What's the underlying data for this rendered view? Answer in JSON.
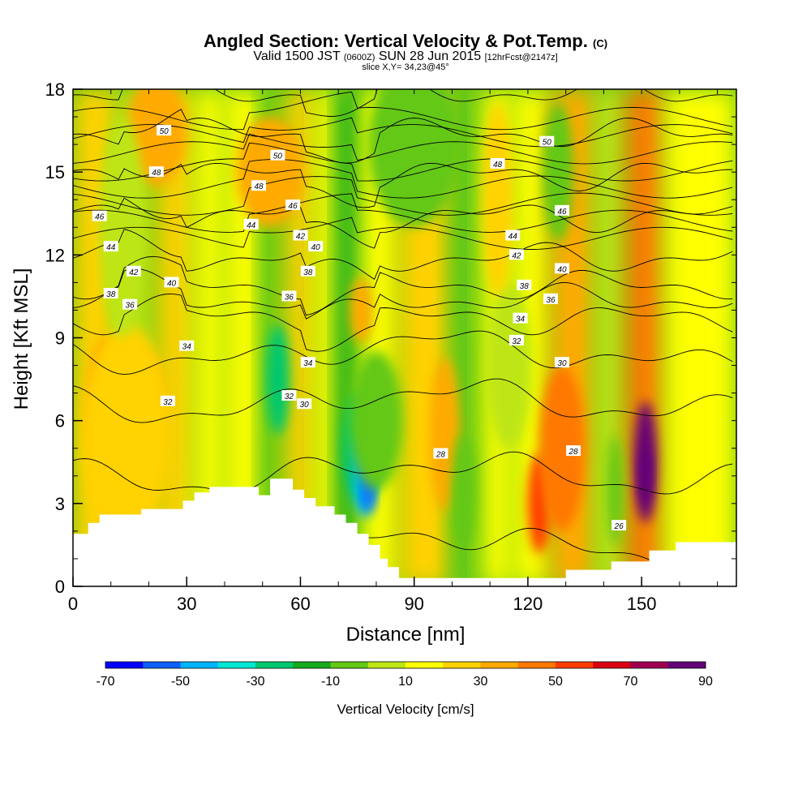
{
  "title": {
    "main": "Angled Section: Vertical Velocity & Pot.Temp.",
    "main_unit": "(C)",
    "sub_a": "Valid 1500 JST",
    "sub_b": "(0600Z)",
    "sub_c": "SUN 28 Jun 2015",
    "sub_d": "[12hrFcst@2147z]",
    "slice": "slice X,Y= 34,23@45°"
  },
  "chart_data": {
    "type": "heatmap",
    "xlabel": "Distance [nm]",
    "ylabel": "Height [Kft MSL]",
    "xlim": [
      0,
      175
    ],
    "ylim": [
      0,
      18
    ],
    "x_ticks": [
      "0",
      "30",
      "60",
      "90",
      "120",
      "150"
    ],
    "x_tick_values": [
      0,
      30,
      60,
      90,
      120,
      150
    ],
    "y_ticks": [
      "0",
      "3",
      "6",
      "9",
      "12",
      "15",
      "18"
    ],
    "y_tick_values": [
      0,
      3,
      6,
      9,
      12,
      15,
      18
    ],
    "colorbar": {
      "label": "Vertical Velocity [cm/s]",
      "tick_labels": [
        "-70",
        "-50",
        "-30",
        "-10",
        "10",
        "30",
        "50",
        "70",
        "90"
      ],
      "tick_values": [
        -70,
        -50,
        -30,
        -10,
        10,
        30,
        50,
        70,
        90
      ],
      "colors": [
        "#0000ff",
        "#1060ff",
        "#00b4ff",
        "#00e6d2",
        "#00c86e",
        "#14aa1e",
        "#64c814",
        "#bee614",
        "#ffff00",
        "#ffd200",
        "#ffaa00",
        "#ff7800",
        "#ff3c00",
        "#dc0014",
        "#a00050",
        "#640078"
      ]
    },
    "terrain": [
      [
        0,
        1.9
      ],
      [
        4,
        1.9
      ],
      [
        4,
        2.3
      ],
      [
        7,
        2.3
      ],
      [
        7,
        2.6
      ],
      [
        18,
        2.6
      ],
      [
        18,
        2.8
      ],
      [
        29,
        2.8
      ],
      [
        29,
        3.1
      ],
      [
        32,
        3.1
      ],
      [
        32,
        3.4
      ],
      [
        36,
        3.4
      ],
      [
        36,
        3.6
      ],
      [
        49,
        3.6
      ],
      [
        49,
        3.3
      ],
      [
        52,
        3.3
      ],
      [
        52,
        3.9
      ],
      [
        58,
        3.9
      ],
      [
        58,
        3.5
      ],
      [
        61,
        3.5
      ],
      [
        61,
        3.2
      ],
      [
        64,
        3.2
      ],
      [
        64,
        2.9
      ],
      [
        69,
        2.9
      ],
      [
        69,
        2.6
      ],
      [
        72,
        2.6
      ],
      [
        72,
        2.3
      ],
      [
        75,
        2.3
      ],
      [
        75,
        1.9
      ],
      [
        78,
        1.9
      ],
      [
        78,
        1.5
      ],
      [
        81,
        1.5
      ],
      [
        81,
        1.0
      ],
      [
        83,
        1.0
      ],
      [
        83,
        0.7
      ],
      [
        86,
        0.7
      ],
      [
        86,
        0.3
      ],
      [
        130,
        0.3
      ],
      [
        130,
        0.6
      ],
      [
        142,
        0.6
      ],
      [
        142,
        0.9
      ],
      [
        152,
        0.9
      ],
      [
        152,
        1.3
      ],
      [
        159,
        1.3
      ],
      [
        159,
        1.6
      ],
      [
        175,
        1.6
      ],
      [
        175,
        0
      ],
      [
        0,
        0
      ]
    ],
    "velocity_cells": [
      {
        "x": 10,
        "y": 6.5,
        "w": -6,
        "h": 2.5,
        "v": 35
      },
      {
        "x": 20,
        "y": 6.5,
        "w": -4,
        "h": 2.0,
        "v": 25
      },
      {
        "x": 14,
        "y": 5.5,
        "w": -12,
        "h": 4.0,
        "v": 18
      },
      {
        "x": 22,
        "y": 16.5,
        "w": -8,
        "h": 2.0,
        "v": 25
      },
      {
        "x": 52,
        "y": 15.0,
        "w": -9,
        "h": 2.0,
        "v": 22
      },
      {
        "x": 90,
        "y": 16.0,
        "w": -12,
        "h": 3.0,
        "v": -12
      },
      {
        "x": 13,
        "y": 13.0,
        "w": -6,
        "h": 4.0,
        "v": -10
      },
      {
        "x": 54,
        "y": 7.5,
        "w": -3,
        "h": 2.0,
        "v": -35
      },
      {
        "x": 76,
        "y": 5.0,
        "w": -5,
        "h": 2.0,
        "v": -35
      },
      {
        "x": 77,
        "y": 4.0,
        "w": -3,
        "h": 1.5,
        "v": -58
      },
      {
        "x": 78,
        "y": 3.6,
        "w": -1.5,
        "h": 0.9,
        "v": -70
      },
      {
        "x": 80,
        "y": 6.0,
        "w": -7,
        "h": 2.5,
        "v": -20
      },
      {
        "x": 98,
        "y": 5.5,
        "w": -4,
        "h": 2.8,
        "v": 22
      },
      {
        "x": 103,
        "y": 3.5,
        "w": -3,
        "h": 2.0,
        "v": -15
      },
      {
        "x": 123,
        "y": 3.0,
        "w": -3,
        "h": 1.8,
        "v": 42
      },
      {
        "x": 129,
        "y": 5.0,
        "w": -6,
        "h": 3.0,
        "v": 35
      },
      {
        "x": 115,
        "y": 8.0,
        "w": -6,
        "h": 3.0,
        "v": -10
      },
      {
        "x": 151,
        "y": 4.5,
        "w": -3,
        "h": 2.2,
        "v": 75
      },
      {
        "x": 151,
        "y": 4.0,
        "w": -1.5,
        "h": 1.0,
        "v": 90
      },
      {
        "x": 143,
        "y": 3.5,
        "w": -2,
        "h": 2.0,
        "v": -15
      },
      {
        "x": 76,
        "y": 10.0,
        "w": -3,
        "h": 1.2,
        "v": 28
      },
      {
        "x": 112,
        "y": 14.0,
        "w": -4,
        "h": 3.5,
        "v": 18
      },
      {
        "x": 128,
        "y": 15.0,
        "w": -4,
        "h": 2.5,
        "v": -12
      }
    ],
    "isentropes": {
      "values_c": [
        26,
        28,
        30,
        32,
        34,
        36,
        38,
        40,
        42,
        44,
        46,
        48,
        50
      ],
      "labels": [
        "26",
        "28",
        "30",
        "32",
        "34",
        "36",
        "38",
        "40",
        "42",
        "44",
        "46",
        "48",
        "50"
      ]
    }
  }
}
